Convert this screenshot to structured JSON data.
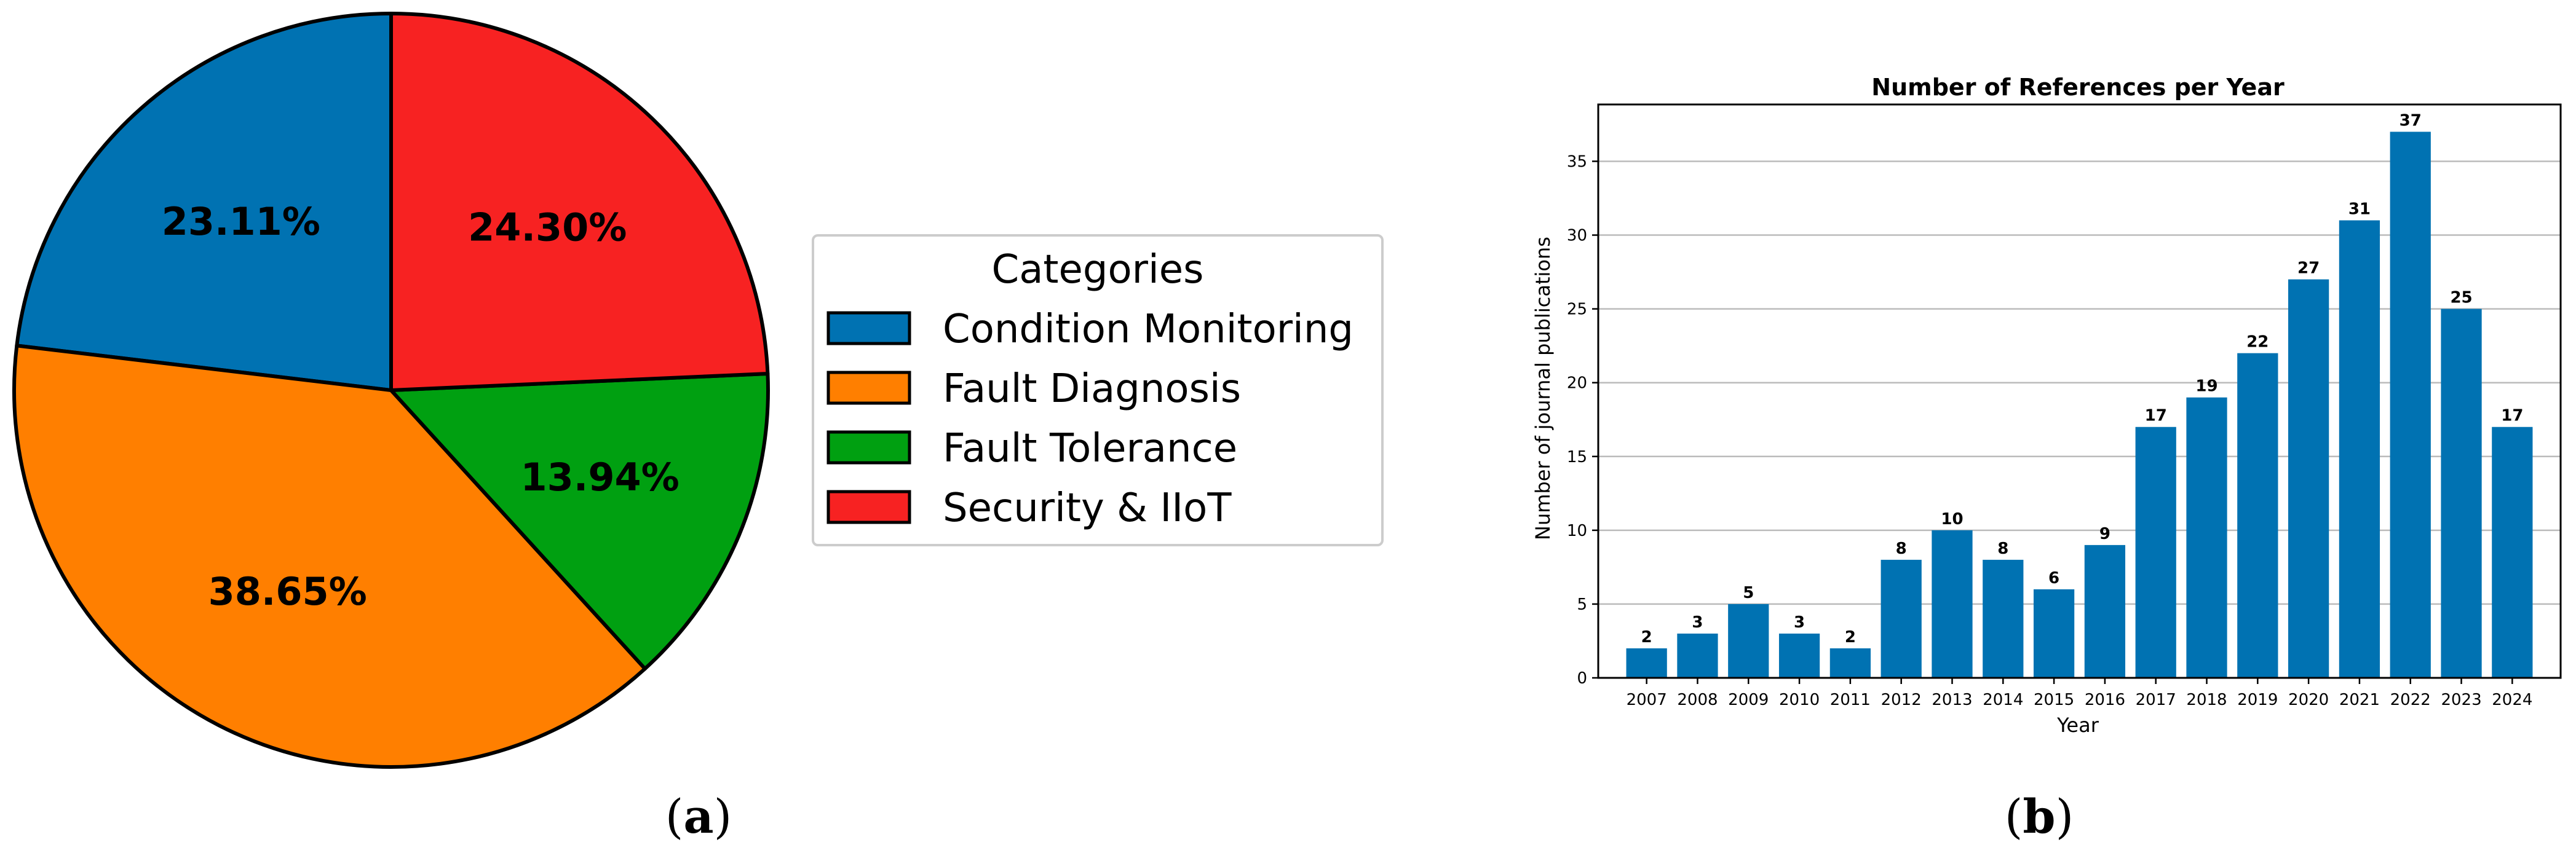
{
  "chart_data": [
    {
      "type": "pie",
      "title": "",
      "legend_title": "Categories",
      "legend_position": "right",
      "categories": [
        "Condition Monitoring",
        "Fault Diagnosis",
        "Fault Tolerance",
        "Security & IIoT"
      ],
      "values": [
        23.11,
        38.65,
        13.94,
        24.3
      ],
      "labels": [
        "23.11%",
        "38.65%",
        "13.94%",
        "24.30%"
      ],
      "colors": [
        "#0072b2",
        "#ff7f00",
        "#00a011",
        "#f72222"
      ],
      "caption_letter": "a"
    },
    {
      "type": "bar",
      "title": "Number of References per Year",
      "xlabel": "Year",
      "ylabel": "Number of journal publications",
      "ylim": [
        0,
        38.85
      ],
      "yticks": [
        0,
        5,
        10,
        15,
        20,
        25,
        30,
        35
      ],
      "grid": "horizontal",
      "color": "#0072b2",
      "categories": [
        "2007",
        "2008",
        "2009",
        "2010",
        "2011",
        "2012",
        "2013",
        "2014",
        "2015",
        "2016",
        "2017",
        "2018",
        "2019",
        "2020",
        "2021",
        "2022",
        "2023",
        "2024"
      ],
      "values": [
        2,
        3,
        5,
        3,
        2,
        8,
        10,
        8,
        6,
        9,
        17,
        19,
        22,
        27,
        31,
        37,
        25,
        17
      ],
      "caption_letter": "b"
    }
  ]
}
